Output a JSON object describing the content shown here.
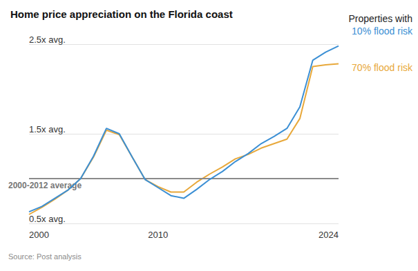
{
  "chart_data": {
    "type": "line",
    "title": "Home price appreciation on the Florida coast",
    "legend_title": "Properties with",
    "legend": "top-right",
    "source": "Source: Post analysis",
    "annotations": [
      {
        "text": "2000-2012 average",
        "y": 1
      }
    ],
    "x": [
      2000,
      2001,
      2002,
      2003,
      2004,
      2005,
      2006,
      2007,
      2008,
      2009,
      2010,
      2011,
      2012,
      2013,
      2014,
      2015,
      2016,
      2017,
      2018,
      2019,
      2020,
      2021,
      2022,
      2023,
      2024
    ],
    "xlim": [
      2000,
      2024
    ],
    "xticks": [
      2000,
      2010,
      2024
    ],
    "ylim": [
      0.5,
      2.5
    ],
    "yticks": [
      {
        "value": 0.5,
        "label": "0.5x avg."
      },
      {
        "value": 1.5,
        "label": "1.5x avg."
      },
      {
        "value": 2.5,
        "label": "2.5x avg."
      }
    ],
    "grid": true,
    "series": [
      {
        "name": "10% flood risk",
        "color": "#3b8fd4",
        "values": [
          0.63,
          0.69,
          0.78,
          0.87,
          1.0,
          1.25,
          1.56,
          1.5,
          1.24,
          0.99,
          0.9,
          0.81,
          0.78,
          0.88,
          0.99,
          1.08,
          1.19,
          1.28,
          1.39,
          1.47,
          1.56,
          1.8,
          2.32,
          2.41,
          2.48
        ]
      },
      {
        "name": "70% flood risk",
        "color": "#e8a83a",
        "values": [
          0.6,
          0.68,
          0.77,
          0.87,
          1.0,
          1.24,
          1.54,
          1.49,
          1.24,
          0.99,
          0.91,
          0.85,
          0.85,
          0.96,
          1.05,
          1.13,
          1.22,
          1.27,
          1.34,
          1.39,
          1.44,
          1.67,
          2.25,
          2.27,
          2.28
        ]
      }
    ]
  }
}
